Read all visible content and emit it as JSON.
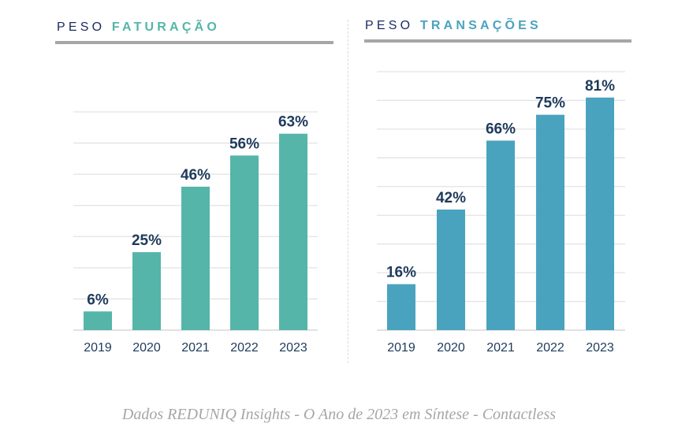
{
  "chart_data": [
    {
      "type": "bar",
      "title_prefix": "PESO",
      "title_highlight": "FATURAÇÃO",
      "categories": [
        "2019",
        "2020",
        "2021",
        "2022",
        "2023"
      ],
      "values": [
        6,
        25,
        46,
        56,
        63
      ],
      "labels": [
        "6%",
        "25%",
        "46%",
        "56%",
        "63%"
      ],
      "ylim": [
        0,
        70
      ],
      "grid": true,
      "color": "#55b5a9"
    },
    {
      "type": "bar",
      "title_prefix": "PESO",
      "title_highlight": "TRANSAÇÕES",
      "categories": [
        "2019",
        "2020",
        "2021",
        "2022",
        "2023"
      ],
      "values": [
        16,
        42,
        66,
        75,
        81
      ],
      "labels": [
        "16%",
        "42%",
        "66%",
        "75%",
        "81%"
      ],
      "ylim": [
        0,
        90
      ],
      "grid": true,
      "color": "#4aa3be"
    }
  ],
  "caption": "Dados REDUNIQ Insights - O Ano de 2023 em Síntese - Contactless"
}
